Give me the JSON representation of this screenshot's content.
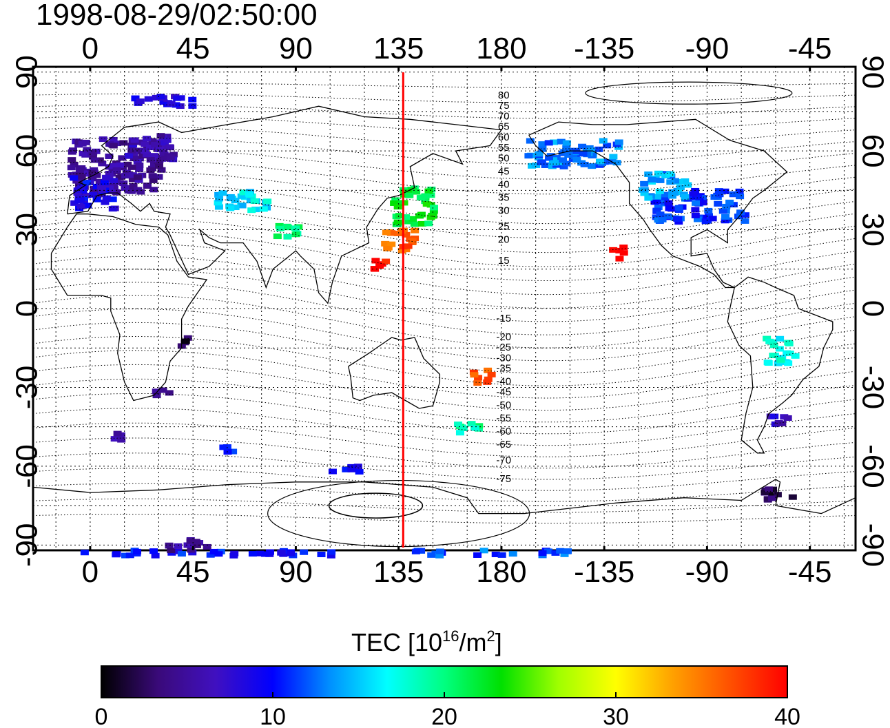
{
  "header": {
    "timestamp": "1998-08-29/02:50:00"
  },
  "map": {
    "lon_ticks_top": [
      "0",
      "45",
      "90",
      "135",
      "180",
      "-135",
      "-90",
      "-45"
    ],
    "lon_ticks_bottom": [
      "0",
      "45",
      "90",
      "135",
      "180",
      "-135",
      "-90",
      "-45"
    ],
    "lat_ticks_left": [
      "90",
      "60",
      "30",
      "0",
      "-30",
      "-60",
      "-90"
    ],
    "lat_ticks_right": [
      "90",
      "60",
      "30",
      "0",
      "-30",
      "-60",
      "-90"
    ],
    "lon_range": [
      -25,
      335
    ],
    "lat_range": [
      -92,
      92
    ],
    "meridian_marker": {
      "lon": 137,
      "color": "#ff0000"
    },
    "contour_labels": [
      "80",
      "75",
      "70",
      "65",
      "60",
      "55",
      "50",
      "45",
      "40",
      "35",
      "30",
      "25",
      "20",
      "15",
      "-15",
      "-20",
      "-25",
      "-30",
      "-35",
      "-40",
      "-45",
      "-50",
      "-55",
      "-60",
      "-65",
      "-70",
      "-75"
    ]
  },
  "colorbar": {
    "title_main": "TEC  [10",
    "title_sup1": "16",
    "title_mid": "/m",
    "title_sup2": "2",
    "title_end": "]",
    "ticks": [
      "0",
      "10",
      "20",
      "30",
      "40"
    ],
    "range": [
      0,
      40
    ],
    "colors": [
      "#000000",
      "#3a0a7a",
      "#4010c0",
      "#0000ff",
      "#0090ff",
      "#00ffff",
      "#00ff80",
      "#00e000",
      "#a0ff00",
      "#ffff00",
      "#ffa000",
      "#ff5000",
      "#ff0000"
    ]
  },
  "tec_patches": [
    {
      "lon": 10,
      "lat": 55,
      "w": 40,
      "h": 22,
      "tec": 5
    },
    {
      "lon": 0,
      "lat": 45,
      "w": 18,
      "h": 12,
      "tec": 9
    },
    {
      "lon": 25,
      "lat": 62,
      "w": 20,
      "h": 10,
      "tec": 6
    },
    {
      "lon": 30,
      "lat": 80,
      "w": 30,
      "h": 4,
      "tec": 8
    },
    {
      "lon": 65,
      "lat": 42,
      "w": 22,
      "h": 8,
      "tec": 16
    },
    {
      "lon": 85,
      "lat": 30,
      "w": 10,
      "h": 6,
      "tec": 20
    },
    {
      "lon": 140,
      "lat": 40,
      "w": 18,
      "h": 14,
      "tec": 22
    },
    {
      "lon": 135,
      "lat": 27,
      "w": 16,
      "h": 8,
      "tec": 36
    },
    {
      "lon": 125,
      "lat": 18,
      "w": 6,
      "h": 6,
      "tec": 40
    },
    {
      "lon": 230,
      "lat": 22,
      "w": 6,
      "h": 5,
      "tec": 40
    },
    {
      "lon": 170,
      "lat": -25,
      "w": 8,
      "h": 6,
      "tec": 37
    },
    {
      "lon": 164,
      "lat": -45,
      "w": 10,
      "h": 6,
      "tec": 19
    },
    {
      "lon": 210,
      "lat": 60,
      "w": 40,
      "h": 10,
      "tec": 13
    },
    {
      "lon": 265,
      "lat": 40,
      "w": 40,
      "h": 12,
      "tec": 11
    },
    {
      "lon": 250,
      "lat": 48,
      "w": 20,
      "h": 10,
      "tec": 14
    },
    {
      "lon": 300,
      "lat": -15,
      "w": 14,
      "h": 10,
      "tec": 17
    },
    {
      "lon": 300,
      "lat": -40,
      "w": 8,
      "h": 6,
      "tec": 7
    },
    {
      "lon": 300,
      "lat": -70,
      "w": 14,
      "h": 5,
      "tec": 2
    },
    {
      "lon": 50,
      "lat": -92,
      "w": 110,
      "h": 2,
      "tec": 10
    },
    {
      "lon": 175,
      "lat": -92,
      "w": 70,
      "h": 2,
      "tec": 12
    },
    {
      "lon": 40,
      "lat": -89,
      "w": 20,
      "h": 4,
      "tec": 5
    },
    {
      "lon": 40,
      "lat": -12,
      "w": 6,
      "h": 4,
      "tec": 2
    },
    {
      "lon": 30,
      "lat": -32,
      "w": 6,
      "h": 4,
      "tec": 5
    },
    {
      "lon": 10,
      "lat": -48,
      "w": 6,
      "h": 3,
      "tec": 5
    },
    {
      "lon": 60,
      "lat": -53,
      "w": 8,
      "h": 3,
      "tec": 10
    },
    {
      "lon": 110,
      "lat": -60,
      "w": 12,
      "h": 3,
      "tec": 10
    }
  ]
}
